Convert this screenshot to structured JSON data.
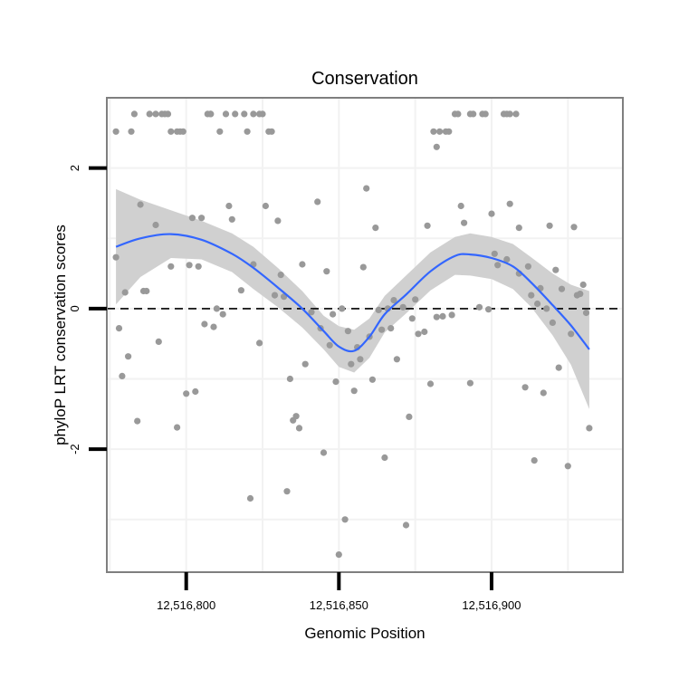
{
  "chart_data": {
    "type": "scatter",
    "title": "Conservation",
    "xlabel": "Genomic Position",
    "ylabel": "phyloP LRT conservation scores",
    "xlim": [
      12516774,
      12516943
    ],
    "ylim": [
      -3.75,
      3.0
    ],
    "x_ticks": [
      {
        "value": 12516800,
        "label": "12,516,800"
      },
      {
        "value": 12516850,
        "label": "12,516,850"
      },
      {
        "value": 12516900,
        "label": "12,516,900"
      }
    ],
    "y_ticks": [
      {
        "value": -2,
        "label": "-2"
      },
      {
        "value": 0,
        "label": "0"
      },
      {
        "value": 2,
        "label": "2"
      }
    ],
    "reference_line": {
      "y": 0,
      "style": "dashed"
    },
    "colors": {
      "points": "#999999",
      "smooth_line": "#3366ff",
      "ribbon": "#d0d0d0",
      "grid": "#f2f2f2",
      "frame": "#7f7f7f"
    },
    "points": [
      [
        12516777,
        2.52
      ],
      [
        12516777,
        0.73
      ],
      [
        12516778,
        -0.28
      ],
      [
        12516779,
        -0.96
      ],
      [
        12516780,
        0.23
      ],
      [
        12516781,
        -0.68
      ],
      [
        12516782,
        2.52
      ],
      [
        12516783,
        2.77
      ],
      [
        12516784,
        -1.6
      ],
      [
        12516785,
        1.48
      ],
      [
        12516786,
        0.25
      ],
      [
        12516787,
        0.25
      ],
      [
        12516788,
        2.77
      ],
      [
        12516790,
        2.77
      ],
      [
        12516790,
        1.19
      ],
      [
        12516791,
        -0.47
      ],
      [
        12516792,
        2.77
      ],
      [
        12516793,
        2.77
      ],
      [
        12516794,
        2.77
      ],
      [
        12516795,
        0.6
      ],
      [
        12516795,
        2.52
      ],
      [
        12516797,
        -1.69
      ],
      [
        12516797,
        2.52
      ],
      [
        12516798,
        2.52
      ],
      [
        12516799,
        2.52
      ],
      [
        12516800,
        -1.21
      ],
      [
        12516801,
        0.62
      ],
      [
        12516802,
        1.29
      ],
      [
        12516803,
        -1.18
      ],
      [
        12516804,
        0.6
      ],
      [
        12516805,
        1.29
      ],
      [
        12516806,
        -0.22
      ],
      [
        12516807,
        2.77
      ],
      [
        12516808,
        2.77
      ],
      [
        12516808,
        2.77
      ],
      [
        12516809,
        -0.26
      ],
      [
        12516810,
        0.0
      ],
      [
        12516811,
        2.52
      ],
      [
        12516812,
        -0.08
      ],
      [
        12516813,
        2.77
      ],
      [
        12516814,
        1.46
      ],
      [
        12516815,
        1.27
      ],
      [
        12516816,
        2.77
      ],
      [
        12516818,
        0.26
      ],
      [
        12516819,
        2.77
      ],
      [
        12516820,
        2.52
      ],
      [
        12516821,
        -2.7
      ],
      [
        12516822,
        2.77
      ],
      [
        12516822,
        0.63
      ],
      [
        12516824,
        2.77
      ],
      [
        12516824,
        -0.49
      ],
      [
        12516825,
        2.77
      ],
      [
        12516826,
        1.46
      ],
      [
        12516827,
        2.52
      ],
      [
        12516828,
        2.52
      ],
      [
        12516829,
        0.19
      ],
      [
        12516830,
        1.25
      ],
      [
        12516831,
        0.48
      ],
      [
        12516832,
        0.17
      ],
      [
        12516833,
        -2.6
      ],
      [
        12516834,
        -1.0
      ],
      [
        12516835,
        -1.59
      ],
      [
        12516836,
        -1.53
      ],
      [
        12516837,
        -1.7
      ],
      [
        12516838,
        0.63
      ],
      [
        12516839,
        -0.79
      ],
      [
        12516841,
        -0.05
      ],
      [
        12516843,
        1.52
      ],
      [
        12516844,
        -0.28
      ],
      [
        12516845,
        -2.05
      ],
      [
        12516846,
        0.53
      ],
      [
        12516847,
        -0.52
      ],
      [
        12516848,
        -0.08
      ],
      [
        12516849,
        -1.04
      ],
      [
        12516850,
        -3.5
      ],
      [
        12516851,
        0.0
      ],
      [
        12516852,
        -3.0
      ],
      [
        12516853,
        -0.32
      ],
      [
        12516854,
        -0.79
      ],
      [
        12516855,
        -1.17
      ],
      [
        12516856,
        -0.55
      ],
      [
        12516857,
        -0.72
      ],
      [
        12516858,
        0.59
      ],
      [
        12516859,
        1.71
      ],
      [
        12516860,
        -0.4
      ],
      [
        12516861,
        -1.01
      ],
      [
        12516862,
        1.15
      ],
      [
        12516863,
        -0.02
      ],
      [
        12516864,
        -0.3
      ],
      [
        12516865,
        -2.12
      ],
      [
        12516866,
        0.0
      ],
      [
        12516867,
        -0.28
      ],
      [
        12516868,
        0.12
      ],
      [
        12516869,
        -0.72
      ],
      [
        12516871,
        0.02
      ],
      [
        12516872,
        -3.08
      ],
      [
        12516873,
        -1.54
      ],
      [
        12516874,
        -0.14
      ],
      [
        12516875,
        0.13
      ],
      [
        12516876,
        -0.36
      ],
      [
        12516878,
        -0.33
      ],
      [
        12516879,
        1.18
      ],
      [
        12516880,
        -1.07
      ],
      [
        12516881,
        2.52
      ],
      [
        12516882,
        -0.12
      ],
      [
        12516882,
        2.3
      ],
      [
        12516883,
        2.52
      ],
      [
        12516884,
        -0.11
      ],
      [
        12516885,
        2.52
      ],
      [
        12516886,
        2.52
      ],
      [
        12516887,
        -0.09
      ],
      [
        12516888,
        2.77
      ],
      [
        12516889,
        2.77
      ],
      [
        12516890,
        1.46
      ],
      [
        12516891,
        1.22
      ],
      [
        12516893,
        -1.06
      ],
      [
        12516893,
        2.77
      ],
      [
        12516894,
        2.77
      ],
      [
        12516896,
        0.02
      ],
      [
        12516897,
        2.77
      ],
      [
        12516898,
        2.77
      ],
      [
        12516899,
        -0.01
      ],
      [
        12516900,
        1.35
      ],
      [
        12516901,
        0.78
      ],
      [
        12516902,
        0.62
      ],
      [
        12516904,
        2.77
      ],
      [
        12516905,
        0.7
      ],
      [
        12516905,
        2.77
      ],
      [
        12516906,
        1.49
      ],
      [
        12516906,
        2.77
      ],
      [
        12516908,
        2.77
      ],
      [
        12516909,
        1.15
      ],
      [
        12516909,
        0.5
      ],
      [
        12516911,
        -1.12
      ],
      [
        12516912,
        0.6
      ],
      [
        12516913,
        0.19
      ],
      [
        12516914,
        -2.16
      ],
      [
        12516915,
        0.07
      ],
      [
        12516916,
        0.29
      ],
      [
        12516917,
        -1.2
      ],
      [
        12516918,
        0.0
      ],
      [
        12516919,
        1.18
      ],
      [
        12516920,
        -0.2
      ],
      [
        12516921,
        0.55
      ],
      [
        12516922,
        -0.84
      ],
      [
        12516923,
        0.28
      ],
      [
        12516925,
        -2.24
      ],
      [
        12516926,
        -0.36
      ],
      [
        12516927,
        1.16
      ],
      [
        12516928,
        0.19
      ],
      [
        12516929,
        0.21
      ],
      [
        12516930,
        0.34
      ],
      [
        12516931,
        -0.06
      ],
      [
        12516932,
        -1.7
      ]
    ],
    "smooth": [
      [
        12516777,
        0.88
      ],
      [
        12516785,
        1.0
      ],
      [
        12516795,
        1.06
      ],
      [
        12516805,
        0.98
      ],
      [
        12516815,
        0.78
      ],
      [
        12516822,
        0.58
      ],
      [
        12516830,
        0.3
      ],
      [
        12516838,
        0.0
      ],
      [
        12516845,
        -0.32
      ],
      [
        12516850,
        -0.54
      ],
      [
        12516855,
        -0.6
      ],
      [
        12516860,
        -0.4
      ],
      [
        12516865,
        -0.08
      ],
      [
        12516872,
        0.2
      ],
      [
        12516880,
        0.53
      ],
      [
        12516888,
        0.75
      ],
      [
        12516893,
        0.77
      ],
      [
        12516900,
        0.72
      ],
      [
        12516907,
        0.6
      ],
      [
        12516913,
        0.37
      ],
      [
        12516920,
        0.05
      ],
      [
        12516926,
        -0.24
      ],
      [
        12516932,
        -0.58
      ]
    ],
    "band_upper": [
      [
        12516777,
        1.7
      ],
      [
        12516785,
        1.55
      ],
      [
        12516795,
        1.4
      ],
      [
        12516805,
        1.25
      ],
      [
        12516815,
        1.07
      ],
      [
        12516822,
        0.88
      ],
      [
        12516830,
        0.58
      ],
      [
        12516838,
        0.25
      ],
      [
        12516845,
        -0.1
      ],
      [
        12516850,
        -0.25
      ],
      [
        12516855,
        -0.3
      ],
      [
        12516860,
        -0.14
      ],
      [
        12516865,
        0.18
      ],
      [
        12516872,
        0.47
      ],
      [
        12516880,
        0.8
      ],
      [
        12516888,
        1.02
      ],
      [
        12516893,
        1.07
      ],
      [
        12516900,
        1.02
      ],
      [
        12516907,
        0.92
      ],
      [
        12516913,
        0.73
      ],
      [
        12516920,
        0.5
      ],
      [
        12516926,
        0.34
      ],
      [
        12516932,
        0.25
      ]
    ],
    "band_lower": [
      [
        12516777,
        0.06
      ],
      [
        12516785,
        0.45
      ],
      [
        12516795,
        0.72
      ],
      [
        12516805,
        0.7
      ],
      [
        12516815,
        0.52
      ],
      [
        12516822,
        0.28
      ],
      [
        12516830,
        0.02
      ],
      [
        12516838,
        -0.27
      ],
      [
        12516845,
        -0.58
      ],
      [
        12516850,
        -0.83
      ],
      [
        12516855,
        -0.91
      ],
      [
        12516860,
        -0.7
      ],
      [
        12516865,
        -0.34
      ],
      [
        12516872,
        -0.07
      ],
      [
        12516880,
        0.26
      ],
      [
        12516888,
        0.48
      ],
      [
        12516893,
        0.47
      ],
      [
        12516900,
        0.42
      ],
      [
        12516907,
        0.28
      ],
      [
        12516913,
        0.02
      ],
      [
        12516920,
        -0.38
      ],
      [
        12516926,
        -0.8
      ],
      [
        12516932,
        -1.43
      ]
    ]
  }
}
